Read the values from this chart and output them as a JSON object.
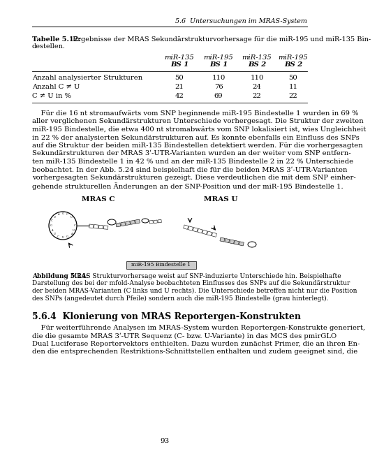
{
  "page_width": 4.53,
  "page_height": 6.4,
  "bg_color": "#ffffff",
  "header_text": "5.6  Untersuchungen im MRAS-System",
  "table_caption_bold": "Tabelle 5.12:",
  "table_caption_rest": " Ergebnisse der MRAS Sekundärstrukturvorhersage für die miR-195 und miR-135 Bin-\ndestellen.",
  "col_headers_line1": [
    "miR-135",
    "miR-195",
    "miR-135",
    "miR-195"
  ],
  "col_headers_line2": [
    "BS 1",
    "BS 1",
    "BS 2",
    "BS 2"
  ],
  "row_labels": [
    "Anzahl analysierter Strukturen",
    "Anzahl C ≠ U",
    "C ≠ U in %"
  ],
  "table_data": [
    [
      50,
      110,
      110,
      50
    ],
    [
      21,
      76,
      24,
      11
    ],
    [
      42,
      69,
      22,
      22
    ]
  ],
  "paragraph1_lines": [
    "    Für die 16 nt stromaufwärts vom SNP beginnende miR-195 Bindestelle 1 wurden in 69 %",
    "aller verglichenen Sekundärstrukturen Unterschiede vorhergesagt. Die Struktur der zweiten",
    "miR-195 Bindestelle, die etwa 400 nt stromabwärts vom SNP lokalisiert ist, wies Ungleichheit",
    "in 22 % der analysierten Sekundärstrukturen auf. Es konnte ebenfalls ein Einfluss des SNPs",
    "auf die Struktur der beiden miR-135 Bindestellen detektiert werden. Für die vorhergesagten",
    "Sekundärstrukturen der MRAS 3ʹ-UTR-Varianten wurden an der weiter vom SNP entfern-",
    "ten miR-135 Bindestelle 1 in 42 % und an der miR-135 Bindestelle 2 in 22 % Unterschiede",
    "beobachtet. In der Abb. 5.24 sind beispielhaft die für die beiden MRAS 3ʹ-UTR-Varianten",
    "vorhergesagten Sekundärstrukturen gezeigt. Diese verdeutlichen die mit dem SNP einher-",
    "gehende strukturellen Änderungen an der SNP-Position und der miR-195 Bindestelle 1."
  ],
  "fig_label_c": "MRAS C",
  "fig_label_u": "MRAS U",
  "fig_bindestelle": "miR-195 Bindestelle 1",
  "fig_caption_bold": "Abbildung 5.24:",
  "fig_caption_lines": [
    "Abbildung 5.24: MRAS Strukturvorhersage weist auf SNP-induzierte Unterschiede hin. Beispielhafte",
    "Darstellung des bei der mfold-Analyse beobachteten Einflusses des SNPs auf die Sekundärstruktur",
    "der beiden MRAS-Varianten (C links und U rechts). Die Unterschiede betreffen nicht nur die Position",
    "des SNPs (angedeutet durch Pfeile) sondern auch die miR-195 Bindestelle (grau hinterlegt)."
  ],
  "section_title": "5.6.4  Klonierung von MRAS Reportergen-Konstrukten",
  "paragraph2_lines": [
    "    Für weiterführende Analysen im MRAS-System wurden Reportergen-Konstrukte generiert,",
    "die die gesamte MRAS 3ʹ-UTR Sequenz (C- bzw. U-Variante) in das MCS des pmirGLO",
    "Dual Luciferase Reportervektors enthielten. Dazu wurden zunächst Primer, die an ihren En-",
    "den die entsprechenden Restriktions-Schnittstellen enthalten und zudem geeignet sind, die"
  ],
  "page_number": "93"
}
